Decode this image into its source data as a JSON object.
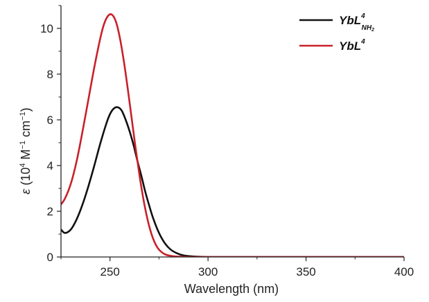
{
  "chart_data": {
    "type": "line",
    "xlabel": "Wavelength (nm)",
    "ylabel": {
      "symbol": "ε",
      "open": " (10",
      "exp1": "4",
      "unit1": " M",
      "exp2": "−1",
      "unit2": " cm",
      "exp3": "−1",
      "close": ")"
    },
    "xlim": [
      225,
      400
    ],
    "ylim": [
      0,
      11
    ],
    "xticks": [
      250,
      300,
      350,
      400
    ],
    "yticks": [
      0,
      2,
      4,
      6,
      8,
      10
    ],
    "xtick_labels": [
      "250",
      "300",
      "350",
      "400"
    ],
    "ytick_labels": [
      "0",
      "2",
      "4",
      "6",
      "8",
      "10"
    ],
    "grid": false,
    "legend_position": "top-right",
    "series": [
      {
        "name": "YbL4NH2",
        "legend": {
          "main": "YbL",
          "sup": "4",
          "sub": "NH",
          "sub2": "2"
        },
        "color": "#111111",
        "x": [
          225,
          227,
          230,
          233,
          236,
          239,
          242,
          245,
          248,
          250,
          252,
          254,
          256,
          258,
          260,
          262,
          264,
          266,
          268,
          270,
          272,
          275,
          278,
          281,
          284,
          287,
          290,
          293,
          296,
          300,
          310,
          330,
          360,
          400
        ],
        "y": [
          1.2,
          1.05,
          1.2,
          1.65,
          2.3,
          3.1,
          4.0,
          4.95,
          5.8,
          6.25,
          6.5,
          6.55,
          6.4,
          6.0,
          5.5,
          4.9,
          4.2,
          3.55,
          2.85,
          2.25,
          1.7,
          1.05,
          0.6,
          0.32,
          0.17,
          0.08,
          0.04,
          0.02,
          0.01,
          0.0,
          0.0,
          0.0,
          0.0,
          0.0
        ]
      },
      {
        "name": "YbL4",
        "legend": {
          "main": "YbL",
          "sup": "4"
        },
        "color": "#c8202a",
        "x": [
          225,
          227,
          230,
          233,
          236,
          239,
          242,
          245,
          247,
          249,
          251,
          253,
          255,
          257,
          259,
          261,
          263,
          265,
          267,
          269,
          271,
          273,
          275,
          278,
          281,
          284,
          287,
          290,
          293,
          296,
          300,
          310,
          330,
          360,
          400
        ],
        "y": [
          2.3,
          2.55,
          3.2,
          4.2,
          5.5,
          6.9,
          8.3,
          9.55,
          10.2,
          10.55,
          10.6,
          10.3,
          9.6,
          8.6,
          7.4,
          6.1,
          4.8,
          3.6,
          2.55,
          1.7,
          1.05,
          0.6,
          0.32,
          0.12,
          0.05,
          0.02,
          0.01,
          0.0,
          0.0,
          0.0,
          0.0,
          0.0,
          0.0,
          0.0,
          0.0
        ]
      }
    ]
  },
  "colors": {
    "axis": "#222222"
  }
}
